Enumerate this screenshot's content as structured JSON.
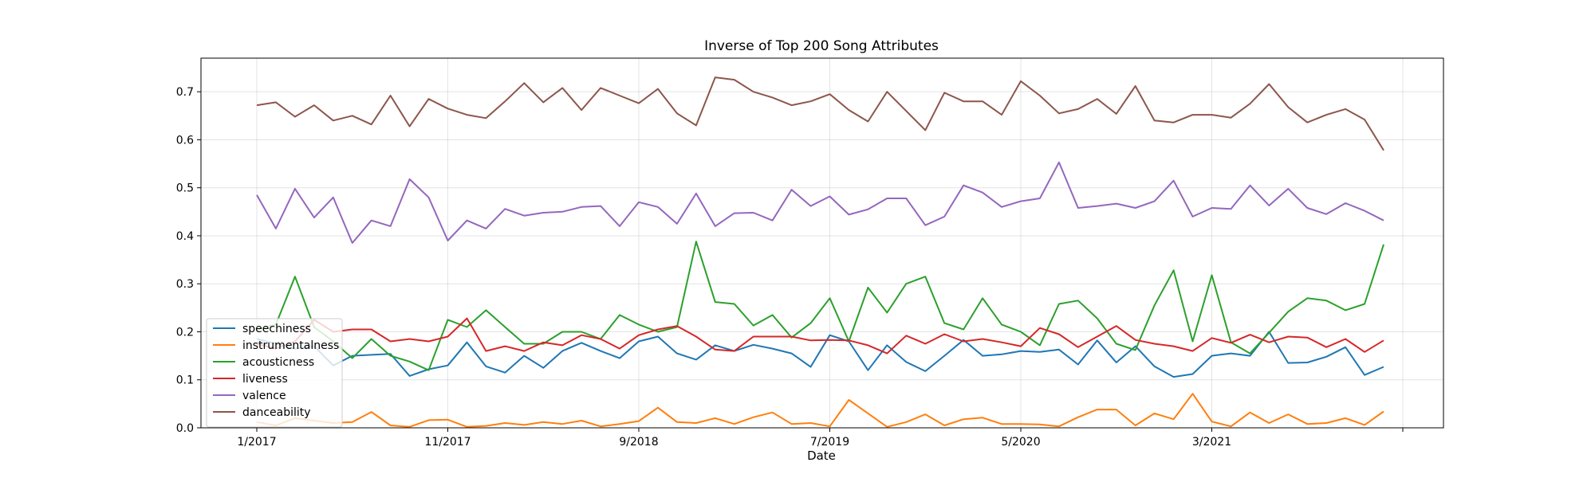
{
  "chart_data": {
    "type": "line",
    "title": "Inverse of Top 200 Song Attributes",
    "xlabel": "Date",
    "ylabel": "",
    "ylim": [
      0.0,
      0.77
    ],
    "y_ticks": [
      "0.0",
      "0.1",
      "0.2",
      "0.3",
      "0.4",
      "0.5",
      "0.6",
      "0.7"
    ],
    "x_ticks": [
      {
        "index": 0,
        "label": "1/2017"
      },
      {
        "index": 10,
        "label": "11/2017"
      },
      {
        "index": 20,
        "label": "9/2018"
      },
      {
        "index": 30,
        "label": "7/2019"
      },
      {
        "index": 40,
        "label": "5/2020"
      },
      {
        "index": 50,
        "label": "3/2021"
      },
      {
        "index": 60,
        "label": ""
      }
    ],
    "grid": true,
    "legend_position": "lower-left",
    "series": [
      {
        "name": "speechiness",
        "color": "#1f77b4",
        "values": [
          0.185,
          0.175,
          0.165,
          0.17,
          0.13,
          0.15,
          0.152,
          0.154,
          0.108,
          0.122,
          0.13,
          0.178,
          0.128,
          0.115,
          0.15,
          0.125,
          0.16,
          0.177,
          0.16,
          0.145,
          0.18,
          0.19,
          0.155,
          0.142,
          0.172,
          0.16,
          0.173,
          0.165,
          0.155,
          0.127,
          0.193,
          0.18,
          0.12,
          0.172,
          0.137,
          0.118,
          0.15,
          0.183,
          0.15,
          0.153,
          0.16,
          0.158,
          0.163,
          0.132,
          0.182,
          0.136,
          0.17,
          0.128,
          0.106,
          0.112,
          0.15,
          0.155,
          0.15,
          0.2,
          0.135,
          0.136,
          0.148,
          0.168,
          0.11,
          0.127
        ]
      },
      {
        "name": "instrumentalness",
        "color": "#ff7f0e",
        "values": [
          0.012,
          0.005,
          0.02,
          0.015,
          0.01,
          0.012,
          0.033,
          0.005,
          0.002,
          0.016,
          0.017,
          0.002,
          0.004,
          0.01,
          0.006,
          0.012,
          0.008,
          0.015,
          0.003,
          0.008,
          0.014,
          0.042,
          0.012,
          0.01,
          0.02,
          0.008,
          0.022,
          0.032,
          0.008,
          0.01,
          0.003,
          0.058,
          0.03,
          0.002,
          0.012,
          0.028,
          0.005,
          0.018,
          0.021,
          0.008,
          0.008,
          0.007,
          0.003,
          0.022,
          0.038,
          0.038,
          0.005,
          0.03,
          0.018,
          0.071,
          0.013,
          0.003,
          0.032,
          0.01,
          0.028,
          0.008,
          0.01,
          0.02,
          0.006,
          0.034
        ]
      },
      {
        "name": "acousticness",
        "color": "#2ca02c",
        "values": [
          0.205,
          0.215,
          0.315,
          0.21,
          0.18,
          0.145,
          0.185,
          0.15,
          0.138,
          0.12,
          0.225,
          0.21,
          0.245,
          0.21,
          0.175,
          0.175,
          0.2,
          0.2,
          0.185,
          0.235,
          0.215,
          0.2,
          0.21,
          0.388,
          0.262,
          0.258,
          0.213,
          0.235,
          0.188,
          0.218,
          0.27,
          0.18,
          0.292,
          0.24,
          0.3,
          0.315,
          0.218,
          0.205,
          0.27,
          0.215,
          0.2,
          0.172,
          0.258,
          0.265,
          0.228,
          0.175,
          0.162,
          0.255,
          0.328,
          0.18,
          0.318,
          0.178,
          0.155,
          0.198,
          0.242,
          0.27,
          0.265,
          0.245,
          0.258,
          0.382
        ]
      },
      {
        "name": "liveness",
        "color": "#d62728",
        "values": [
          0.175,
          0.165,
          0.18,
          0.225,
          0.2,
          0.205,
          0.205,
          0.18,
          0.185,
          0.18,
          0.19,
          0.228,
          0.16,
          0.17,
          0.16,
          0.178,
          0.172,
          0.193,
          0.185,
          0.165,
          0.193,
          0.205,
          0.212,
          0.19,
          0.163,
          0.16,
          0.19,
          0.19,
          0.19,
          0.182,
          0.183,
          0.182,
          0.172,
          0.155,
          0.192,
          0.175,
          0.195,
          0.18,
          0.185,
          0.178,
          0.17,
          0.208,
          0.195,
          0.168,
          0.19,
          0.212,
          0.183,
          0.175,
          0.17,
          0.16,
          0.187,
          0.177,
          0.194,
          0.178,
          0.19,
          0.188,
          0.168,
          0.185,
          0.158,
          0.182
        ]
      },
      {
        "name": "valence",
        "color": "#9467bd",
        "values": [
          0.485,
          0.415,
          0.498,
          0.438,
          0.48,
          0.385,
          0.432,
          0.42,
          0.518,
          0.48,
          0.39,
          0.432,
          0.415,
          0.456,
          0.442,
          0.448,
          0.45,
          0.46,
          0.462,
          0.42,
          0.47,
          0.46,
          0.425,
          0.488,
          0.42,
          0.447,
          0.448,
          0.432,
          0.496,
          0.462,
          0.482,
          0.444,
          0.455,
          0.478,
          0.478,
          0.422,
          0.44,
          0.505,
          0.49,
          0.46,
          0.472,
          0.478,
          0.553,
          0.458,
          0.462,
          0.467,
          0.458,
          0.472,
          0.515,
          0.44,
          0.458,
          0.456,
          0.505,
          0.463,
          0.498,
          0.458,
          0.445,
          0.468,
          0.452,
          0.432
        ]
      },
      {
        "name": "danceability",
        "color": "#8c564b",
        "values": [
          0.672,
          0.678,
          0.648,
          0.672,
          0.64,
          0.65,
          0.632,
          0.692,
          0.628,
          0.685,
          0.665,
          0.652,
          0.645,
          0.68,
          0.718,
          0.678,
          0.708,
          0.662,
          0.708,
          0.692,
          0.676,
          0.706,
          0.655,
          0.63,
          0.73,
          0.725,
          0.7,
          0.688,
          0.672,
          0.68,
          0.695,
          0.662,
          0.638,
          0.7,
          0.66,
          0.62,
          0.698,
          0.68,
          0.68,
          0.652,
          0.722,
          0.692,
          0.655,
          0.664,
          0.685,
          0.654,
          0.712,
          0.64,
          0.636,
          0.652,
          0.652,
          0.646,
          0.675,
          0.716,
          0.668,
          0.636,
          0.652,
          0.664,
          0.642,
          0.578
        ]
      }
    ]
  }
}
